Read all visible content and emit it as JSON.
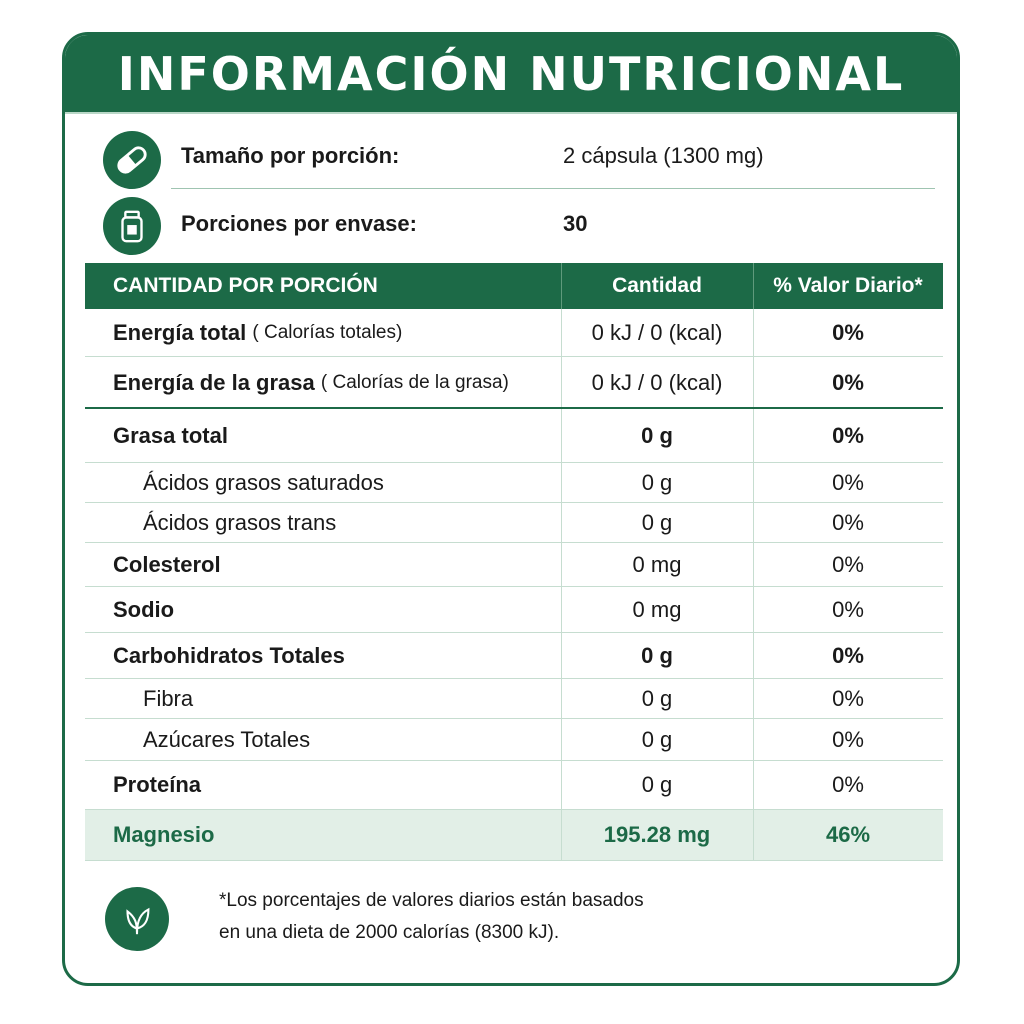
{
  "title": "INFORMACIÓN NUTRICIONAL",
  "serving": {
    "size_label": "Tamaño por porción:",
    "size_value": "2 cápsula (1300 mg)",
    "servings_label": "Porciones por envase:",
    "servings_value": "30"
  },
  "table": {
    "headers": [
      "CANTIDAD POR PORCIÓN",
      "Cantidad",
      "% Valor Diario*"
    ],
    "energy_rows": [
      {
        "label": "Energía total",
        "sub": "( Calorías totales)",
        "amount": "0 kJ / 0 (kcal)",
        "dv": "0%"
      },
      {
        "label": "Energía de la grasa",
        "sub": "( Calorías de la grasa)",
        "amount": "0 kJ / 0 (kcal)",
        "dv": "0%"
      }
    ],
    "rows": [
      {
        "label": "Grasa total",
        "amount": "0 g",
        "dv": "0%"
      },
      {
        "label": "Ácidos grasos saturados",
        "amount": "0 g",
        "dv": "0%"
      },
      {
        "label": "Ácidos grasos trans",
        "amount": "0 g",
        "dv": "0%"
      },
      {
        "label": "Colesterol",
        "amount": "0 mg",
        "dv": "0%"
      },
      {
        "label": "Sodio",
        "amount": "0 mg",
        "dv": "0%"
      },
      {
        "label": "Carbohidratos Totales",
        "amount": "0 g",
        "dv": "0%"
      },
      {
        "label": "Fibra",
        "amount": "0 g",
        "dv": "0%"
      },
      {
        "label": "Azúcares Totales",
        "amount": "0 g",
        "dv": "0%"
      },
      {
        "label": "Proteína",
        "amount": "0 g",
        "dv": "0%"
      }
    ],
    "highlight_row": {
      "label": "Magnesio",
      "amount": "195.28 mg",
      "dv": "46%"
    }
  },
  "footnote": {
    "line1": "*Los porcentajes de valores diarios están basados",
    "line2": "en una dieta de 2000 calorías (8300 kJ)."
  },
  "icons": {
    "serving": "capsule-icon",
    "container": "jar-icon",
    "footnote": "leaf-icon"
  },
  "colors": {
    "brand_green": "#1c6a47",
    "highlight_bg": "#e2efe7"
  }
}
